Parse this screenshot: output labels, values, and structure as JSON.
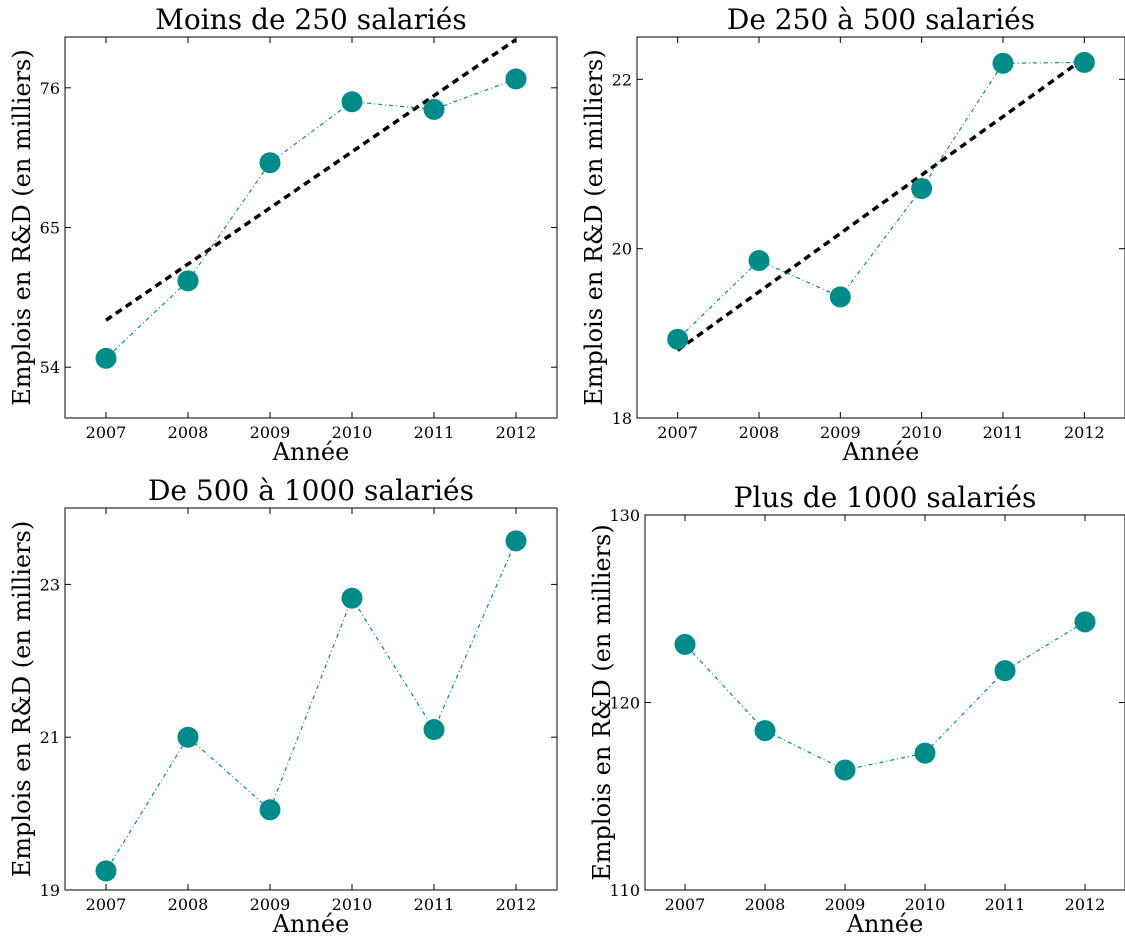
{
  "chart_data": [
    {
      "type": "scatter",
      "title": "Moins de 250 salariés",
      "xlabel": "Année",
      "ylabel": "Emplois en R&D (en milliers)",
      "x": [
        2007,
        2008,
        2009,
        2010,
        2011,
        2012
      ],
      "xlim": [
        2006.5,
        2012.5
      ],
      "ylim": [
        50,
        80
      ],
      "yticks": [
        54,
        65,
        76
      ],
      "series": [
        {
          "values": [
            54.7,
            60.8,
            70.1,
            74.9,
            74.3,
            76.7
          ],
          "color": "#008B8B"
        }
      ],
      "trend": {
        "from": [
          2007,
          57.7
        ],
        "to": [
          2012,
          79.8
        ]
      }
    },
    {
      "type": "scatter",
      "title": "De 250 à 500 salariés",
      "xlabel": "Année",
      "ylabel": "Emplois en R&D (en milliers)",
      "x": [
        2007,
        2008,
        2009,
        2010,
        2011,
        2012
      ],
      "xlim": [
        2006.5,
        2012.5
      ],
      "ylim": [
        18,
        22.5
      ],
      "yticks": [
        18,
        20,
        22
      ],
      "series": [
        {
          "values": [
            18.93,
            19.86,
            19.43,
            20.71,
            22.19,
            22.2
          ],
          "color": "#008B8B"
        }
      ],
      "trend": {
        "from": [
          2007,
          18.8
        ],
        "to": [
          2012,
          22.25
        ]
      }
    },
    {
      "type": "scatter",
      "title": "De 500 à 1000 salariés",
      "xlabel": "Année",
      "ylabel": "Emplois en R&D (en milliers)",
      "x": [
        2007,
        2008,
        2009,
        2010,
        2011,
        2012
      ],
      "xlim": [
        2006.5,
        2012.5
      ],
      "ylim": [
        19,
        24
      ],
      "yticks": [
        19,
        21,
        23
      ],
      "series": [
        {
          "values": [
            19.25,
            21.0,
            20.05,
            22.82,
            21.1,
            23.57
          ],
          "color": "#008B8B"
        }
      ]
    },
    {
      "type": "scatter",
      "title": "Plus de 1000 salariés",
      "xlabel": "Année",
      "ylabel": "Emplois en R&D (en milliers)",
      "x": [
        2007,
        2008,
        2009,
        2010,
        2011,
        2012
      ],
      "xlim": [
        2006.5,
        2012.5
      ],
      "ylim": [
        110,
        130
      ],
      "yticks": [
        110,
        120,
        130
      ],
      "series": [
        {
          "values": [
            123.1,
            118.5,
            116.4,
            117.3,
            121.7,
            124.3
          ],
          "color": "#008B8B"
        }
      ]
    }
  ]
}
